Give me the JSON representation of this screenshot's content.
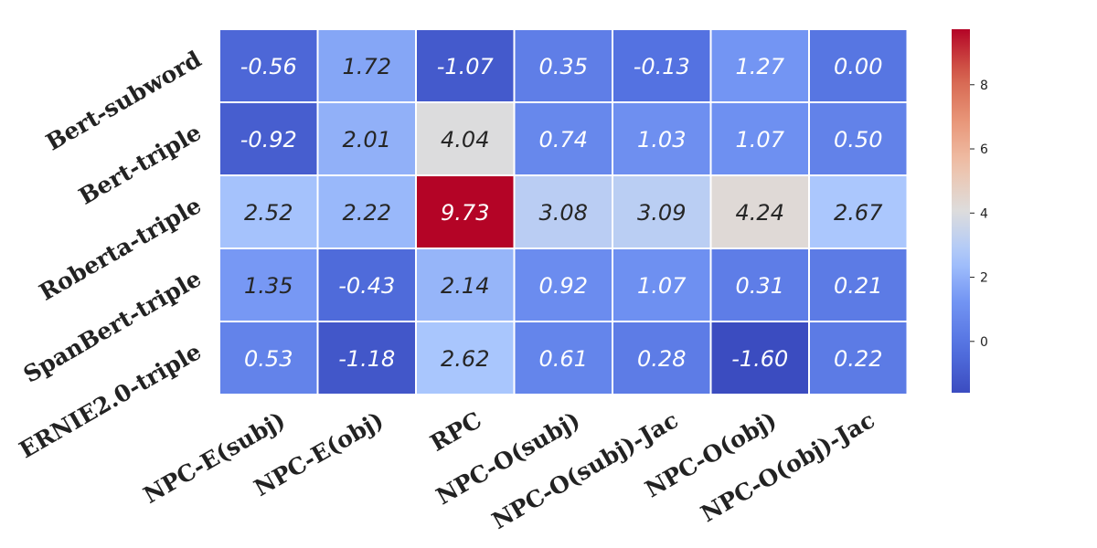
{
  "chart_data": {
    "type": "heatmap",
    "colormap": "coolwarm",
    "rows": [
      "Bert-subword",
      "Bert-triple",
      "Roberta-triple",
      "SpanBert-triple",
      "ERNIE2.0-triple"
    ],
    "columns": [
      "NPC-E(subj)",
      "NPC-E(obj)",
      "RPC",
      "NPC-O(subj)",
      "NPC-O(subj)-Jac",
      "NPC-O(obj)",
      "NPC-O(obj)-Jac"
    ],
    "values": [
      [
        -0.56,
        1.72,
        -1.07,
        0.35,
        -0.13,
        1.27,
        0.0
      ],
      [
        -0.92,
        2.01,
        4.04,
        0.74,
        1.03,
        1.07,
        0.5
      ],
      [
        2.52,
        2.22,
        9.73,
        3.08,
        3.09,
        4.24,
        2.67
      ],
      [
        1.35,
        -0.43,
        2.14,
        0.92,
        1.07,
        0.31,
        0.21
      ],
      [
        0.53,
        -1.18,
        2.62,
        0.61,
        0.28,
        -1.6,
        0.22
      ]
    ],
    "value_labels": [
      [
        "-0.56",
        "1.72",
        "-1.07",
        "0.35",
        "-0.13",
        "1.27",
        "0.00"
      ],
      [
        "-0.92",
        "2.01",
        "4.04",
        "0.74",
        "1.03",
        "1.07",
        "0.50"
      ],
      [
        "2.52",
        "2.22",
        "9.73",
        "3.08",
        "3.09",
        "4.24",
        "2.67"
      ],
      [
        "1.35",
        "-0.43",
        "2.14",
        "0.92",
        "1.07",
        "0.31",
        "0.21"
      ],
      [
        "0.53",
        "-1.18",
        "2.62",
        "0.61",
        "0.28",
        "-1.60",
        "0.22"
      ]
    ],
    "vmin": -1.6,
    "vmax": 9.73,
    "colorbar": {
      "ticks": [
        0,
        2,
        4,
        6,
        8
      ],
      "tick_labels": [
        "0",
        "2",
        "4",
        "6",
        "8"
      ],
      "placement": "right"
    },
    "title": "",
    "xlabel": "",
    "ylabel": "",
    "grid": false,
    "cell_border_color": "#ffffff"
  }
}
